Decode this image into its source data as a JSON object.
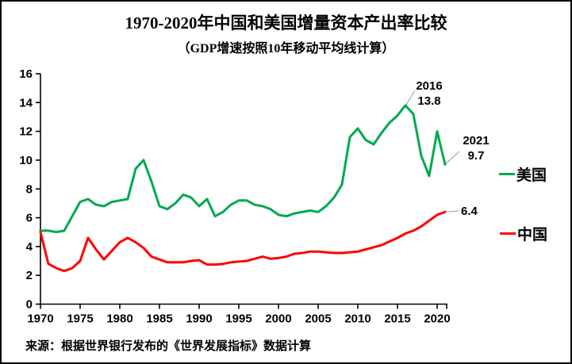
{
  "chart_data": {
    "type": "line",
    "title": "1970-2020年中国和美国增量资本产出率比较",
    "subtitle": "（GDP增速按照10年移动平均线计算）",
    "source": "来源：根据世界银行发布的《世界发展指标》数据计算",
    "grid": "off",
    "legend_position": "right",
    "ylim": [
      0,
      16
    ],
    "y_ticks": [
      0,
      2,
      4,
      6,
      8,
      10,
      12,
      14,
      16
    ],
    "x_ticks": [
      1970,
      1975,
      1980,
      1985,
      1990,
      1995,
      2000,
      2005,
      2010,
      2015,
      2020
    ],
    "x": [
      1970,
      1971,
      1972,
      1973,
      1974,
      1975,
      1976,
      1977,
      1978,
      1979,
      1980,
      1981,
      1982,
      1983,
      1984,
      1985,
      1986,
      1987,
      1988,
      1989,
      1990,
      1991,
      1992,
      1993,
      1994,
      1995,
      1996,
      1997,
      1998,
      1999,
      2000,
      2001,
      2002,
      2003,
      2004,
      2005,
      2006,
      2007,
      2008,
      2009,
      2010,
      2011,
      2012,
      2013,
      2014,
      2015,
      2016,
      2017,
      2018,
      2019,
      2020,
      2021
    ],
    "series": [
      {
        "name": "美国",
        "color": "#00A94F",
        "values": [
          5.1,
          5.1,
          5.0,
          5.1,
          6.1,
          7.1,
          7.3,
          6.9,
          6.8,
          7.1,
          7.2,
          7.3,
          9.4,
          10.0,
          8.5,
          6.8,
          6.6,
          7.0,
          7.6,
          7.4,
          6.8,
          7.3,
          6.1,
          6.4,
          6.9,
          7.2,
          7.2,
          6.9,
          6.8,
          6.6,
          6.2,
          6.1,
          6.3,
          6.4,
          6.5,
          6.4,
          6.8,
          7.4,
          8.3,
          11.6,
          12.2,
          11.4,
          11.1,
          11.9,
          12.6,
          13.1,
          13.8,
          13.2,
          10.3,
          8.9,
          12.0,
          9.7
        ]
      },
      {
        "name": "中国",
        "color": "#FE0000",
        "values": [
          5.0,
          2.8,
          2.5,
          2.3,
          2.5,
          3.0,
          4.6,
          3.8,
          3.1,
          3.7,
          4.3,
          4.6,
          4.3,
          3.9,
          3.3,
          3.1,
          2.9,
          2.9,
          2.9,
          3.0,
          3.05,
          2.75,
          2.75,
          2.8,
          2.9,
          2.95,
          3.0,
          3.15,
          3.3,
          3.15,
          3.2,
          3.3,
          3.5,
          3.55,
          3.65,
          3.65,
          3.6,
          3.55,
          3.55,
          3.6,
          3.65,
          3.8,
          3.95,
          4.1,
          4.35,
          4.6,
          4.9,
          5.1,
          5.4,
          5.8,
          6.2,
          6.4
        ]
      }
    ],
    "annotations": [
      {
        "series": "美国",
        "year": "2016",
        "line1": "2016",
        "line2": "13.8"
      },
      {
        "series": "美国",
        "year": "2021",
        "line1": "2021",
        "line2": "9.7"
      },
      {
        "series": "中国",
        "year": "2021",
        "line1": "6.4",
        "line2": ""
      }
    ],
    "axis_color": "#000000",
    "leader_color": "#999999"
  }
}
